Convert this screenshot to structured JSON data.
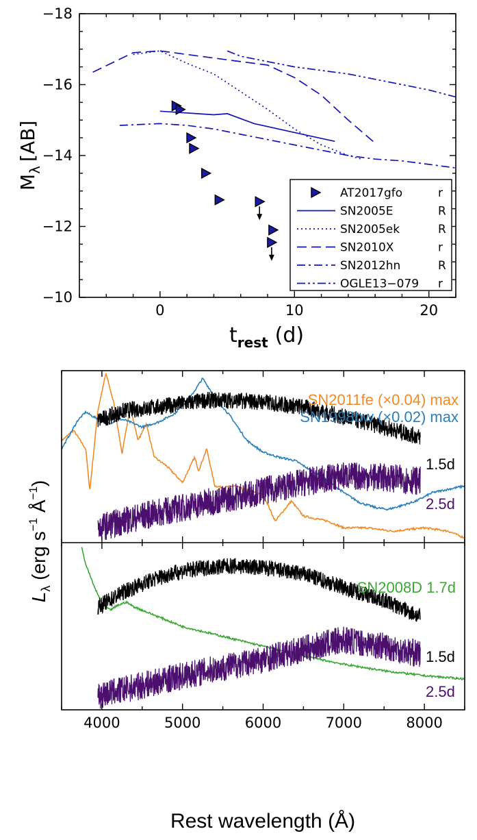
{
  "chart_data": [
    {
      "type": "line",
      "xlabel": "t",
      "xlabel_sub": "rest",
      "xlabel_unit": "(d)",
      "ylabel": "M",
      "ylabel_sub": "λ",
      "ylabel_unit": "[AB]",
      "xlim": [
        -6,
        22
      ],
      "ylim": [
        -10,
        -18
      ],
      "x_ticks": [
        0,
        10,
        20
      ],
      "x_tick_labels": [
        "0",
        "10",
        "20"
      ],
      "y_ticks": [
        -18,
        -16,
        -14,
        -12,
        -10
      ],
      "y_tick_labels": [
        "−18",
        "−16",
        "−14",
        "−12",
        "−10"
      ],
      "legend_position": "bottom-right",
      "series": [
        {
          "name": "AT2017gfo",
          "band": "r",
          "style": "marker",
          "color": "#1a1aa6",
          "x": [
            1.2,
            1.5,
            2.3,
            2.5,
            3.4,
            4.4,
            7.4,
            8.4,
            8.3
          ],
          "y": [
            -15.4,
            -15.3,
            -14.5,
            -14.2,
            -13.5,
            -12.75,
            -12.7,
            -11.9,
            -11.55
          ],
          "upper_limit": [
            false,
            false,
            false,
            false,
            false,
            false,
            true,
            false,
            true
          ]
        },
        {
          "name": "SN2005E",
          "band": "R",
          "style": "solid",
          "color": "#1414b4",
          "x": [
            0,
            2,
            4,
            5,
            7,
            10,
            13
          ],
          "y": [
            -15.25,
            -15.2,
            -15.15,
            -15.18,
            -14.9,
            -14.65,
            -14.4
          ]
        },
        {
          "name": "SN2005ek",
          "band": "R",
          "style": "dotted",
          "color": "#1414b4",
          "x": [
            -2,
            0,
            2,
            4,
            6,
            8,
            10,
            12,
            14,
            15
          ],
          "y": [
            -16.85,
            -16.95,
            -16.6,
            -16.3,
            -15.8,
            -15.3,
            -14.75,
            -14.3,
            -14.0,
            -13.9
          ]
        },
        {
          "name": "SN2010X",
          "band": "r",
          "style": "dashed",
          "color": "#1414b4",
          "x": [
            -5,
            -2,
            0,
            2,
            4,
            6,
            8,
            10,
            12,
            14,
            16
          ],
          "y": [
            -16.35,
            -16.9,
            -16.95,
            -16.85,
            -16.75,
            -16.65,
            -16.55,
            -16.2,
            -15.7,
            -15.0,
            -14.35
          ]
        },
        {
          "name": "SN2012hn",
          "band": "R",
          "style": "dashdot",
          "color": "#1414b4",
          "x": [
            -3,
            0,
            2,
            4,
            6,
            8,
            10,
            12,
            14,
            16,
            18,
            20,
            22
          ],
          "y": [
            -14.85,
            -14.9,
            -14.85,
            -14.75,
            -14.6,
            -14.45,
            -14.3,
            -14.15,
            -14.0,
            -13.9,
            -13.85,
            -13.75,
            -13.65
          ]
        },
        {
          "name": "OGLE13−079",
          "band": "r",
          "style": "dashdotdot",
          "color": "#1414b4",
          "x": [
            5,
            6,
            8,
            10,
            12,
            14,
            16,
            18,
            20,
            22
          ],
          "y": [
            -16.95,
            -16.8,
            -16.65,
            -16.5,
            -16.4,
            -16.3,
            -16.15,
            -16.0,
            -15.85,
            -15.65
          ]
        }
      ]
    },
    {
      "type": "line",
      "panel": "spectra-top",
      "xlim": [
        3500,
        8500
      ],
      "ylabel": "L",
      "ylabel_sub": "λ",
      "ylabel_unit": " (erg s",
      "ylabel_unit2": " Å",
      "ylabel_close": ")",
      "ylabel_exp": "−1",
      "annotations": [
        {
          "text": "SN2011fe (×0.04) max",
          "color": "#f08a24"
        },
        {
          "text": "SN1998bw (×0.02) max",
          "color": "#2a7fba"
        },
        {
          "text": "1.5d",
          "color": "#000000"
        },
        {
          "text": "2.5d",
          "color": "#4b0f6e"
        }
      ],
      "series": [
        {
          "name": "AT2017gfo 1.5d",
          "color": "#000000",
          "x_range": [
            3950,
            7950
          ],
          "x": [
            3950,
            4300,
            4700,
            5000,
            5300,
            5600,
            6000,
            6500,
            7000,
            7500,
            7950
          ],
          "y": [
            0.72,
            0.78,
            0.8,
            0.82,
            0.84,
            0.84,
            0.83,
            0.8,
            0.74,
            0.68,
            0.62
          ]
        },
        {
          "name": "AT2017gfo 2.5d",
          "color": "#4b0f6e",
          "x_range": [
            3950,
            7950
          ],
          "x": [
            3950,
            4500,
            5000,
            5500,
            6000,
            6500,
            7000,
            7500,
            7950
          ],
          "y": [
            0.08,
            0.15,
            0.2,
            0.25,
            0.3,
            0.35,
            0.39,
            0.38,
            0.36
          ]
        },
        {
          "name": "SN2011fe (×0.04) max",
          "color": "#f08a24",
          "x_range": [
            3500,
            8500
          ],
          "x": [
            3500,
            3650,
            3800,
            3850,
            3950,
            4050,
            4150,
            4250,
            4350,
            4450,
            4550,
            4650,
            4800,
            5000,
            5150,
            5200,
            5300,
            5400,
            5500,
            5650,
            5800,
            6000,
            6150,
            6350,
            6500,
            6800,
            7000,
            7300,
            7600,
            8000,
            8300,
            8500
          ],
          "y": [
            0.6,
            0.66,
            0.55,
            0.3,
            0.78,
            1.0,
            0.82,
            0.52,
            0.8,
            0.6,
            0.7,
            0.5,
            0.45,
            0.35,
            0.5,
            0.42,
            0.55,
            0.33,
            0.32,
            0.33,
            0.3,
            0.28,
            0.12,
            0.24,
            0.15,
            0.12,
            0.08,
            0.08,
            0.06,
            0.08,
            0.06,
            0.02
          ]
        },
        {
          "name": "SN1998bw (×0.02) max",
          "color": "#2a7fba",
          "x_range": [
            3500,
            8500
          ],
          "x": [
            3500,
            3700,
            3800,
            3900,
            4000,
            4100,
            4200,
            4300,
            4500,
            4700,
            4900,
            5100,
            5250,
            5400,
            5600,
            5800,
            6000,
            6200,
            6400,
            6600,
            6800,
            7000,
            7200,
            7400,
            7550,
            7700,
            7900,
            8100,
            8300,
            8500
          ],
          "y": [
            0.55,
            0.72,
            0.77,
            0.74,
            0.72,
            0.7,
            0.73,
            0.72,
            0.68,
            0.71,
            0.76,
            0.86,
            0.97,
            0.86,
            0.74,
            0.6,
            0.53,
            0.5,
            0.48,
            0.42,
            0.36,
            0.29,
            0.23,
            0.2,
            0.19,
            0.21,
            0.24,
            0.29,
            0.31,
            0.33
          ]
        }
      ]
    },
    {
      "type": "line",
      "panel": "spectra-bottom",
      "xlim": [
        3500,
        8500
      ],
      "xlabel": "Rest wavelength (Å)",
      "x_ticks": [
        4000,
        5000,
        6000,
        7000,
        8000
      ],
      "x_tick_labels": [
        "4000",
        "5000",
        "6000",
        "7000",
        "8000"
      ],
      "annotations": [
        {
          "text": "SN2008D 1.7d",
          "color": "#3aa832"
        },
        {
          "text": "1.5d",
          "color": "#000000"
        },
        {
          "text": "2.5d",
          "color": "#4b0f6e"
        }
      ],
      "series": [
        {
          "name": "AT2017gfo 1.5d",
          "color": "#000000",
          "x_range": [
            3950,
            7950
          ],
          "x": [
            3950,
            4300,
            4700,
            5000,
            5300,
            5600,
            6000,
            6500,
            7000,
            7500,
            7950
          ],
          "y": [
            0.62,
            0.72,
            0.8,
            0.84,
            0.86,
            0.87,
            0.86,
            0.82,
            0.74,
            0.66,
            0.56
          ]
        },
        {
          "name": "AT2017gfo 2.5d",
          "color": "#4b0f6e",
          "x_range": [
            3950,
            7950
          ],
          "x": [
            3950,
            4500,
            5000,
            5500,
            6000,
            6500,
            7000,
            7500,
            7950
          ],
          "y": [
            0.08,
            0.14,
            0.2,
            0.25,
            0.3,
            0.36,
            0.42,
            0.38,
            0.33
          ]
        },
        {
          "name": "SN2008D 1.7d",
          "color": "#3aa832",
          "x_range": [
            3750,
            8500
          ],
          "x": [
            3750,
            3800,
            3900,
            4000,
            4100,
            4200,
            4300,
            4400,
            4500,
            4700,
            5000,
            5500,
            6000,
            6500,
            7000,
            7500,
            8000,
            8500
          ],
          "y": [
            0.98,
            0.88,
            0.75,
            0.64,
            0.6,
            0.63,
            0.65,
            0.62,
            0.6,
            0.56,
            0.5,
            0.44,
            0.38,
            0.32,
            0.27,
            0.23,
            0.2,
            0.18
          ]
        }
      ]
    }
  ]
}
